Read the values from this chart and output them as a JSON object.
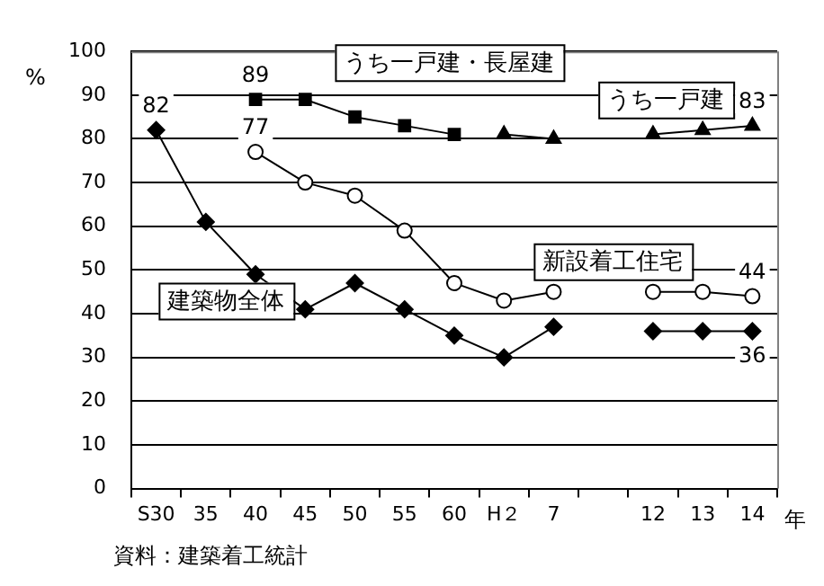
{
  "chart_data": {
    "type": "line",
    "ylabel": "%",
    "xlabel": "年",
    "categories": [
      "S30",
      "35",
      "40",
      "45",
      "50",
      "55",
      "60",
      "H２",
      "7",
      null,
      "12",
      "13",
      "14"
    ],
    "series": [
      {
        "name": "建築物全体",
        "color": "#000000",
        "marker": "diamond",
        "values": [
          82,
          61,
          49,
          41,
          47,
          41,
          35,
          30,
          37,
          null,
          36,
          36,
          36
        ]
      },
      {
        "name": "新設着工住宅",
        "color": "#000000",
        "marker": "circle",
        "values": [
          null,
          null,
          77,
          70,
          67,
          59,
          47,
          43,
          45,
          null,
          45,
          45,
          44
        ]
      },
      {
        "name": "うち一戸建・長屋建",
        "color": "#000000",
        "marker": "square",
        "values": [
          null,
          null,
          89,
          89,
          85,
          83,
          81,
          null,
          null,
          null,
          null,
          null,
          null
        ]
      },
      {
        "name": "うち一戸建",
        "color": "#000000",
        "marker": "triangle",
        "values": [
          null,
          null,
          null,
          null,
          null,
          null,
          null,
          81,
          80,
          null,
          81,
          82,
          83
        ]
      }
    ],
    "ylim": [
      0,
      100
    ],
    "yticks": [
      0,
      10,
      20,
      30,
      40,
      50,
      60,
      70,
      80,
      90,
      100
    ],
    "grid": "y",
    "legend": false,
    "annotations": [
      {
        "text": "82",
        "x": "S30",
        "y": 82
      },
      {
        "text": "89",
        "x": "40",
        "y": 89
      },
      {
        "text": "77",
        "x": "40",
        "y": 77
      },
      {
        "text": "83",
        "x": "14",
        "y": 83
      },
      {
        "text": "44",
        "x": "14",
        "y": 44
      },
      {
        "text": "36",
        "x": "14",
        "y": 36
      },
      "資料：建築着工統計"
    ]
  }
}
